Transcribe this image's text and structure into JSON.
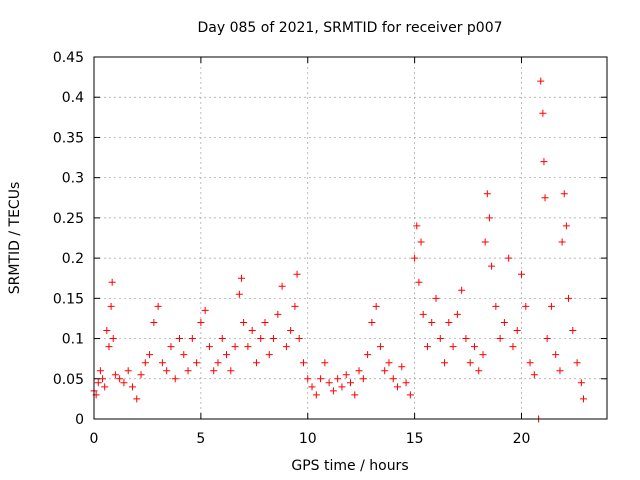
{
  "chart_data": {
    "type": "scatter",
    "title": "Day 085 of 2021, SRMTID for receiver p007",
    "xlabel": "GPS time / hours",
    "ylabel": "SRMTID / TECUs",
    "xlim": [
      0,
      24
    ],
    "ylim": [
      0,
      0.45
    ],
    "x_ticks": [
      0,
      5,
      10,
      15,
      20
    ],
    "x_tick_labels": [
      "0",
      "5",
      "10",
      "15",
      "20"
    ],
    "y_ticks": [
      0,
      0.05,
      0.1,
      0.15,
      0.2,
      0.25,
      0.3,
      0.35,
      0.4,
      0.45
    ],
    "y_tick_labels": [
      "0",
      "0.05",
      "0.1",
      "0.15",
      "0.2",
      "0.25",
      "0.3",
      "0.35",
      "0.4",
      "0.45"
    ],
    "grid": true,
    "marker": "+",
    "series": [
      {
        "name": "SRMTID",
        "color": "#ff0000",
        "points": [
          [
            0.0,
            0.035
          ],
          [
            0.1,
            0.03
          ],
          [
            0.2,
            0.045
          ],
          [
            0.3,
            0.06
          ],
          [
            0.4,
            0.05
          ],
          [
            0.5,
            0.04
          ],
          [
            0.6,
            0.11
          ],
          [
            0.7,
            0.09
          ],
          [
            0.8,
            0.14
          ],
          [
            0.85,
            0.17
          ],
          [
            0.9,
            0.1
          ],
          [
            1.0,
            0.055
          ],
          [
            1.2,
            0.05
          ],
          [
            1.4,
            0.045
          ],
          [
            1.6,
            0.06
          ],
          [
            1.8,
            0.04
          ],
          [
            2.0,
            0.025
          ],
          [
            2.2,
            0.055
          ],
          [
            2.4,
            0.07
          ],
          [
            2.6,
            0.08
          ],
          [
            2.8,
            0.12
          ],
          [
            3.0,
            0.14
          ],
          [
            3.2,
            0.07
          ],
          [
            3.4,
            0.06
          ],
          [
            3.6,
            0.09
          ],
          [
            3.8,
            0.05
          ],
          [
            4.0,
            0.1
          ],
          [
            4.2,
            0.08
          ],
          [
            4.4,
            0.06
          ],
          [
            4.6,
            0.1
          ],
          [
            4.8,
            0.07
          ],
          [
            5.0,
            0.12
          ],
          [
            5.2,
            0.135
          ],
          [
            5.4,
            0.09
          ],
          [
            5.6,
            0.06
          ],
          [
            5.8,
            0.07
          ],
          [
            6.0,
            0.1
          ],
          [
            6.2,
            0.08
          ],
          [
            6.4,
            0.06
          ],
          [
            6.6,
            0.09
          ],
          [
            6.8,
            0.155
          ],
          [
            6.9,
            0.175
          ],
          [
            7.0,
            0.12
          ],
          [
            7.2,
            0.09
          ],
          [
            7.4,
            0.11
          ],
          [
            7.6,
            0.07
          ],
          [
            7.8,
            0.1
          ],
          [
            8.0,
            0.12
          ],
          [
            8.2,
            0.08
          ],
          [
            8.4,
            0.1
          ],
          [
            8.6,
            0.13
          ],
          [
            8.8,
            0.165
          ],
          [
            9.0,
            0.09
          ],
          [
            9.2,
            0.11
          ],
          [
            9.4,
            0.14
          ],
          [
            9.5,
            0.18
          ],
          [
            9.6,
            0.1
          ],
          [
            9.8,
            0.07
          ],
          [
            10.0,
            0.05
          ],
          [
            10.2,
            0.04
          ],
          [
            10.4,
            0.03
          ],
          [
            10.6,
            0.05
          ],
          [
            10.8,
            0.07
          ],
          [
            11.0,
            0.045
          ],
          [
            11.2,
            0.035
          ],
          [
            11.4,
            0.05
          ],
          [
            11.6,
            0.04
          ],
          [
            11.8,
            0.055
          ],
          [
            12.0,
            0.045
          ],
          [
            12.2,
            0.03
          ],
          [
            12.4,
            0.06
          ],
          [
            12.6,
            0.05
          ],
          [
            12.8,
            0.08
          ],
          [
            13.0,
            0.12
          ],
          [
            13.2,
            0.14
          ],
          [
            13.4,
            0.09
          ],
          [
            13.6,
            0.06
          ],
          [
            13.8,
            0.07
          ],
          [
            14.0,
            0.05
          ],
          [
            14.2,
            0.04
          ],
          [
            14.4,
            0.065
          ],
          [
            14.6,
            0.045
          ],
          [
            14.8,
            0.03
          ],
          [
            15.0,
            0.2
          ],
          [
            15.1,
            0.24
          ],
          [
            15.2,
            0.17
          ],
          [
            15.3,
            0.22
          ],
          [
            15.4,
            0.13
          ],
          [
            15.6,
            0.09
          ],
          [
            15.8,
            0.12
          ],
          [
            16.0,
            0.15
          ],
          [
            16.2,
            0.1
          ],
          [
            16.4,
            0.07
          ],
          [
            16.6,
            0.12
          ],
          [
            16.8,
            0.09
          ],
          [
            17.0,
            0.13
          ],
          [
            17.2,
            0.16
          ],
          [
            17.4,
            0.1
          ],
          [
            17.6,
            0.07
          ],
          [
            17.8,
            0.09
          ],
          [
            18.0,
            0.06
          ],
          [
            18.2,
            0.08
          ],
          [
            18.3,
            0.22
          ],
          [
            18.4,
            0.28
          ],
          [
            18.5,
            0.25
          ],
          [
            18.6,
            0.19
          ],
          [
            18.8,
            0.14
          ],
          [
            19.0,
            0.1
          ],
          [
            19.2,
            0.12
          ],
          [
            19.4,
            0.2
          ],
          [
            19.6,
            0.09
          ],
          [
            19.8,
            0.11
          ],
          [
            20.0,
            0.18
          ],
          [
            20.2,
            0.14
          ],
          [
            20.4,
            0.07
          ],
          [
            20.6,
            0.055
          ],
          [
            20.8,
            0.0
          ],
          [
            20.9,
            0.42
          ],
          [
            21.0,
            0.38
          ],
          [
            21.05,
            0.32
          ],
          [
            21.1,
            0.275
          ],
          [
            21.2,
            0.1
          ],
          [
            21.4,
            0.14
          ],
          [
            21.6,
            0.08
          ],
          [
            21.8,
            0.06
          ],
          [
            21.9,
            0.22
          ],
          [
            22.0,
            0.28
          ],
          [
            22.1,
            0.24
          ],
          [
            22.2,
            0.15
          ],
          [
            22.4,
            0.11
          ],
          [
            22.6,
            0.07
          ],
          [
            22.8,
            0.045
          ],
          [
            22.9,
            0.025
          ]
        ]
      }
    ]
  }
}
